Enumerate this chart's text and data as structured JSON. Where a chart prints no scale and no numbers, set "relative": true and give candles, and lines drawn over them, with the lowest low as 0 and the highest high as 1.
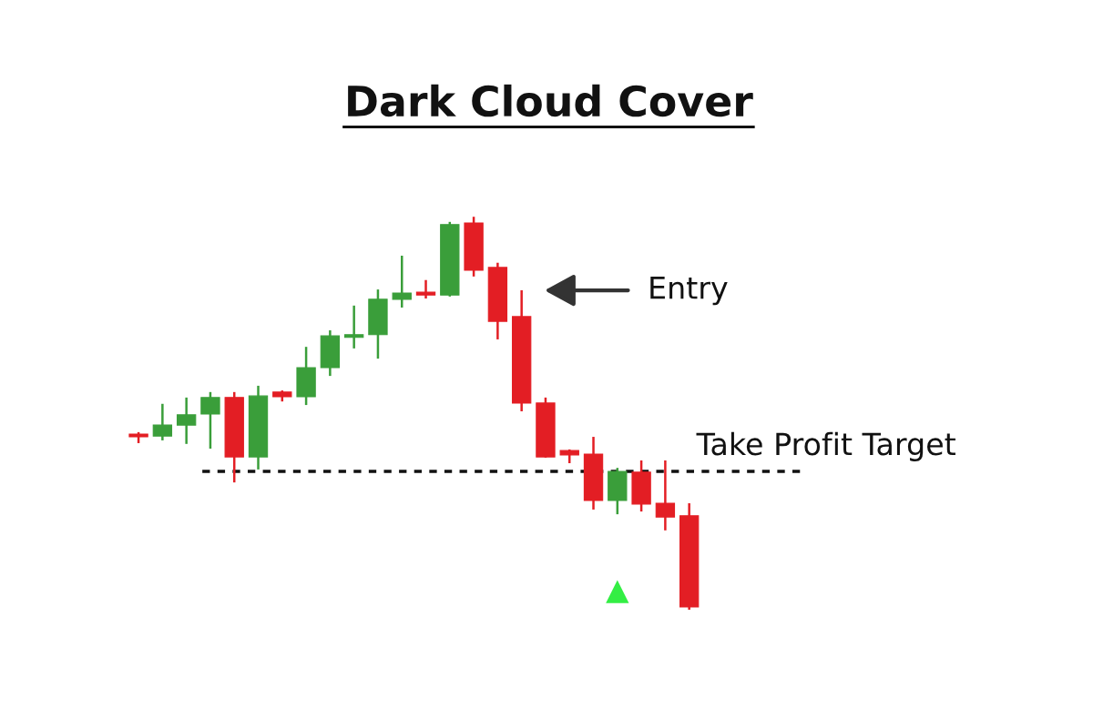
{
  "chart_data": {
    "type": "candlestick",
    "title": "Dark Cloud Cover",
    "relative": true,
    "tick_labels": false,
    "categories": [
      null,
      null,
      null,
      null,
      null,
      null,
      null,
      null,
      null,
      null,
      null,
      null,
      null,
      null,
      null,
      null,
      null,
      null,
      null,
      null,
      null,
      null,
      null,
      null
    ],
    "ohlc": [
      [
        0.447,
        0.452,
        0.424,
        0.44
      ],
      [
        0.442,
        0.524,
        0.431,
        0.47
      ],
      [
        0.47,
        0.54,
        0.422,
        0.496
      ],
      [
        0.498,
        0.554,
        0.41,
        0.54
      ],
      [
        0.54,
        0.554,
        0.324,
        0.389
      ],
      [
        0.389,
        0.57,
        0.357,
        0.544
      ],
      [
        0.554,
        0.558,
        0.53,
        0.542
      ],
      [
        0.542,
        0.669,
        0.521,
        0.616
      ],
      [
        0.616,
        0.711,
        0.595,
        0.697
      ],
      [
        0.693,
        0.774,
        0.665,
        0.7
      ],
      [
        0.7,
        0.815,
        0.639,
        0.79
      ],
      [
        0.79,
        0.901,
        0.769,
        0.806
      ],
      [
        0.808,
        0.839,
        0.792,
        0.801
      ],
      [
        0.801,
        0.987,
        0.797,
        0.98
      ],
      [
        0.984,
        1.0,
        0.848,
        0.864
      ],
      [
        0.871,
        0.883,
        0.688,
        0.734
      ],
      [
        0.746,
        0.813,
        0.505,
        0.526
      ],
      [
        0.526,
        0.54,
        0.387,
        0.389
      ],
      [
        0.405,
        0.408,
        0.373,
        0.394
      ],
      [
        0.396,
        0.44,
        0.255,
        0.278
      ],
      [
        0.278,
        0.361,
        0.243,
        0.352
      ],
      [
        0.35,
        0.38,
        0.25,
        0.269
      ],
      [
        0.271,
        0.38,
        0.202,
        0.236
      ],
      [
        0.239,
        0.271,
        0.0,
        0.007
      ]
    ],
    "colors": [
      "#e31e24",
      "#3a9e3a",
      "#3a9e3a",
      "#3a9e3a",
      "#e31e24",
      "#3a9e3a",
      "#e31e24",
      "#3a9e3a",
      "#3a9e3a",
      "#3a9e3a",
      "#3a9e3a",
      "#3a9e3a",
      "#e31e24",
      "#3a9e3a",
      "#e31e24",
      "#e31e24",
      "#e31e24",
      "#e31e24",
      "#e31e24",
      "#e31e24",
      "#3a9e3a",
      "#e31e24",
      "#e31e24",
      "#e31e24"
    ],
    "series": [
      {
        "type": "scatter",
        "marker": "triangle",
        "color": "#33ee44",
        "values": [
          null,
          null,
          null,
          null,
          null,
          null,
          null,
          null,
          null,
          null,
          null,
          null,
          null,
          null,
          null,
          null,
          null,
          null,
          null,
          null,
          0.046,
          null,
          null,
          null
        ]
      }
    ],
    "ref_lines": [
      {
        "axis": "y",
        "value": 0.352,
        "label": "Take Profit Target",
        "color": "#111111",
        "line_style": "dashed"
      }
    ],
    "annotations": [
      "Entry"
    ]
  }
}
